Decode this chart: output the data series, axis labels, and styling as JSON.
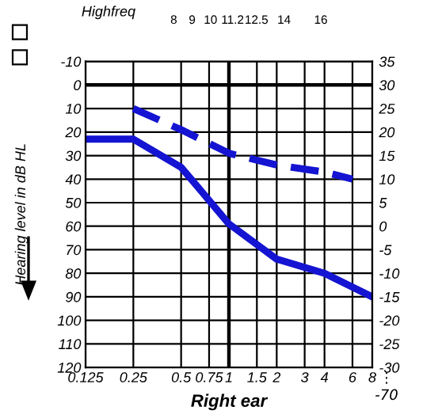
{
  "chart_data": {
    "type": "line",
    "xlabel": "Right ear",
    "ylabel": "Hearing level in dB HL",
    "x2label": "Highfreq",
    "log": "x",
    "xlim": [
      0.125,
      8
    ],
    "xticks": [
      0.125,
      0.25,
      0.5,
      0.75,
      1,
      1.5,
      2,
      3,
      4,
      6,
      8
    ],
    "x2lim": [
      3.2,
      18.8
    ],
    "x2ticks": [
      8,
      9,
      10,
      11.2,
      12.5,
      14,
      16
    ],
    "ylim": [
      120,
      -10
    ],
    "yticks": [
      -10,
      0,
      10,
      20,
      30,
      40,
      50,
      60,
      70,
      80,
      90,
      100,
      110,
      120
    ],
    "y2lim": [
      -30,
      35
    ],
    "y2ticks": [
      35,
      30,
      25,
      20,
      15,
      10,
      5,
      0,
      -5,
      -10,
      -15,
      -20,
      -25,
      -30
    ],
    "annotations": [
      "⋮",
      "-70"
    ],
    "grid": true,
    "legend": false,
    "marker": "none",
    "series": [
      {
        "color": "#1414d2",
        "line_style": "solid",
        "x": [
          0.125,
          0.25,
          0.5,
          1,
          2,
          4,
          8
        ],
        "values": [
          23,
          23,
          35,
          59,
          74,
          80,
          90
        ]
      },
      {
        "color": "#1414d2",
        "line_style": "dashed",
        "x": [
          0.25,
          0.5,
          1,
          2,
          4,
          6
        ],
        "values": [
          10,
          19,
          29,
          34,
          37,
          40
        ]
      }
    ]
  }
}
